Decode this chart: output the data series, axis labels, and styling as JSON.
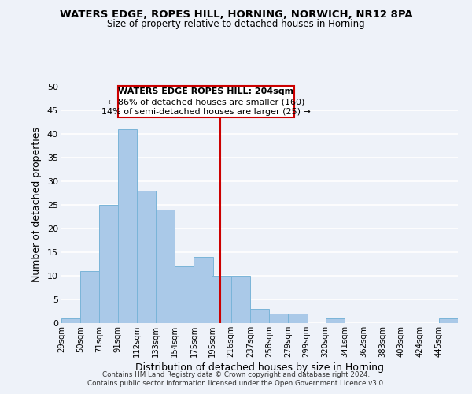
{
  "title": "WATERS EDGE, ROPES HILL, HORNING, NORWICH, NR12 8PA",
  "subtitle": "Size of property relative to detached houses in Horning",
  "xlabel": "Distribution of detached houses by size in Horning",
  "ylabel": "Number of detached properties",
  "bin_labels": [
    "29sqm",
    "50sqm",
    "71sqm",
    "91sqm",
    "112sqm",
    "133sqm",
    "154sqm",
    "175sqm",
    "195sqm",
    "216sqm",
    "237sqm",
    "258sqm",
    "279sqm",
    "299sqm",
    "320sqm",
    "341sqm",
    "362sqm",
    "383sqm",
    "403sqm",
    "424sqm",
    "445sqm"
  ],
  "bin_edges": [
    29,
    50,
    71,
    91,
    112,
    133,
    154,
    175,
    195,
    216,
    237,
    258,
    279,
    299,
    320,
    341,
    362,
    383,
    403,
    424,
    445
  ],
  "counts": [
    1,
    11,
    25,
    41,
    28,
    24,
    12,
    14,
    10,
    10,
    3,
    2,
    2,
    0,
    1,
    0,
    0,
    0,
    0,
    0,
    1
  ],
  "bar_color": "#aac9e8",
  "bar_edge_color": "#7ab4d8",
  "ref_line_x": 204,
  "ref_line_color": "#cc0000",
  "annotation_title": "WATERS EDGE ROPES HILL: 204sqm",
  "annotation_line1": "← 86% of detached houses are smaller (160)",
  "annotation_line2": "14% of semi-detached houses are larger (25) →",
  "annotation_box_color": "#ffffff",
  "annotation_box_edge": "#cc0000",
  "footer1": "Contains HM Land Registry data © Crown copyright and database right 2024.",
  "footer2": "Contains public sector information licensed under the Open Government Licence v3.0.",
  "bg_color": "#eef2f9",
  "grid_color": "#ffffff",
  "ylim": [
    0,
    50
  ],
  "yticks": [
    0,
    5,
    10,
    15,
    20,
    25,
    30,
    35,
    40,
    45,
    50
  ]
}
